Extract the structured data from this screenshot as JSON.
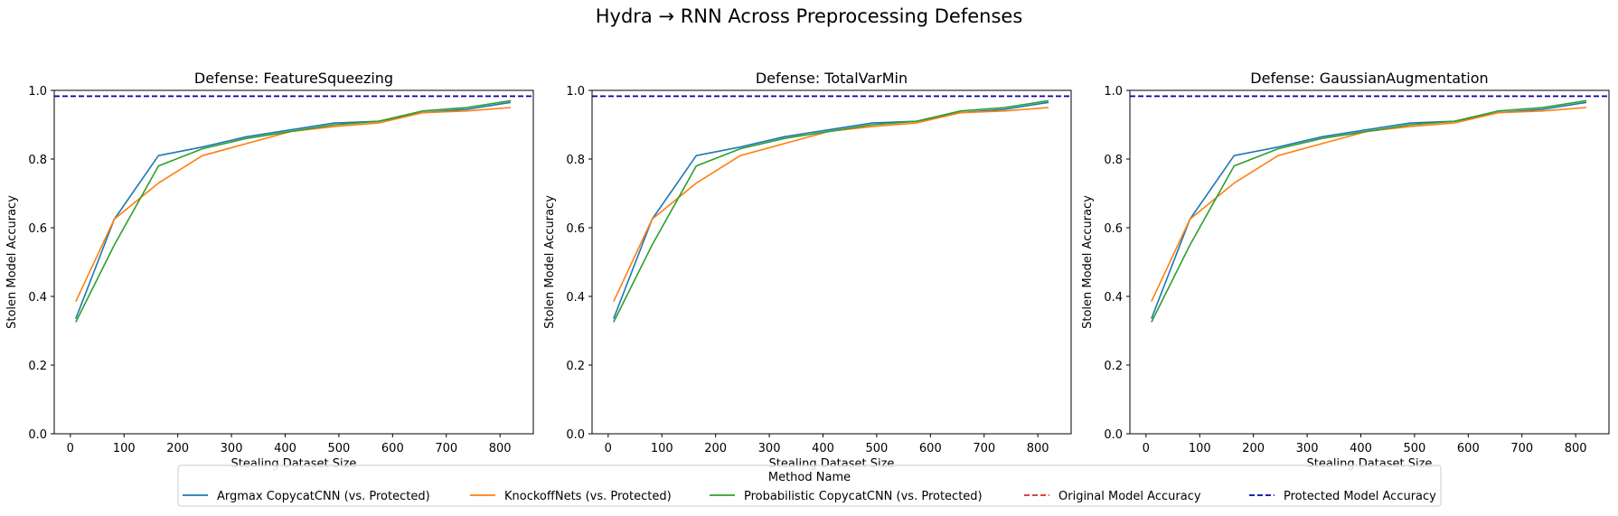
{
  "figure": {
    "suptitle": "Hydra → RNN Across Preprocessing Defenses",
    "legend_title": "Method Name",
    "legend_entries": [
      {
        "label": "Argmax CopycatCNN (vs. Protected)",
        "color": "#1f77b4",
        "dashed": false
      },
      {
        "label": "KnockoffNets (vs. Protected)",
        "color": "#ff7f0e",
        "dashed": false
      },
      {
        "label": "Probabilistic CopycatCNN (vs. Protected)",
        "color": "#2ca02c",
        "dashed": false
      },
      {
        "label": "Original Model Accuracy",
        "color": "#d62728",
        "dashed": true
      },
      {
        "label": "Protected Model Accuracy",
        "color": "#0000b3",
        "dashed": true
      }
    ]
  },
  "chart_data": [
    {
      "type": "line",
      "title": "Defense: FeatureSqueezing",
      "xlabel": "Stealing Dataset Size",
      "ylabel": "Stolen Model Accuracy",
      "xlim": [
        -30,
        862
      ],
      "ylim": [
        0.0,
        1.0
      ],
      "xticks": [
        0,
        100,
        200,
        300,
        400,
        500,
        600,
        700,
        800
      ],
      "yticks": [
        0.0,
        0.2,
        0.4,
        0.6,
        0.8,
        1.0
      ],
      "series": [
        {
          "name": "Argmax CopycatCNN (vs. Protected)",
          "color": "#1f77b4",
          "x": [
            10,
            82,
            164,
            246,
            328,
            410,
            492,
            574,
            656,
            738,
            820
          ],
          "y": [
            0.335,
            0.625,
            0.81,
            0.835,
            0.865,
            0.885,
            0.905,
            0.91,
            0.935,
            0.945,
            0.965
          ]
        },
        {
          "name": "KnockoffNets (vs. Protected)",
          "color": "#ff7f0e",
          "x": [
            10,
            82,
            164,
            246,
            328,
            410,
            492,
            574,
            656,
            738,
            820
          ],
          "y": [
            0.385,
            0.625,
            0.73,
            0.81,
            0.845,
            0.88,
            0.895,
            0.905,
            0.935,
            0.94,
            0.95
          ]
        },
        {
          "name": "Probabilistic CopycatCNN (vs. Protected)",
          "color": "#2ca02c",
          "x": [
            10,
            82,
            164,
            246,
            328,
            410,
            492,
            574,
            656,
            738,
            820
          ],
          "y": [
            0.325,
            0.55,
            0.78,
            0.83,
            0.86,
            0.88,
            0.9,
            0.91,
            0.94,
            0.95,
            0.97
          ]
        }
      ],
      "hlines": [
        {
          "name": "Original Model Accuracy",
          "y": 0.983,
          "color": "#d62728"
        },
        {
          "name": "Protected Model Accuracy",
          "y": 0.983,
          "color": "#0000b3"
        }
      ]
    },
    {
      "type": "line",
      "title": "Defense: TotalVarMin",
      "xlabel": "Stealing Dataset Size",
      "ylabel": "Stolen Model Accuracy",
      "xlim": [
        -30,
        862
      ],
      "ylim": [
        0.0,
        1.0
      ],
      "xticks": [
        0,
        100,
        200,
        300,
        400,
        500,
        600,
        700,
        800
      ],
      "yticks": [
        0.0,
        0.2,
        0.4,
        0.6,
        0.8,
        1.0
      ],
      "series": [
        {
          "name": "Argmax CopycatCNN (vs. Protected)",
          "color": "#1f77b4",
          "x": [
            10,
            82,
            164,
            246,
            328,
            410,
            492,
            574,
            656,
            738,
            820
          ],
          "y": [
            0.335,
            0.625,
            0.81,
            0.835,
            0.865,
            0.885,
            0.905,
            0.91,
            0.935,
            0.945,
            0.965
          ]
        },
        {
          "name": "KnockoffNets (vs. Protected)",
          "color": "#ff7f0e",
          "x": [
            10,
            82,
            164,
            246,
            328,
            410,
            492,
            574,
            656,
            738,
            820
          ],
          "y": [
            0.385,
            0.625,
            0.73,
            0.81,
            0.845,
            0.88,
            0.895,
            0.905,
            0.935,
            0.94,
            0.95
          ]
        },
        {
          "name": "Probabilistic CopycatCNN (vs. Protected)",
          "color": "#2ca02c",
          "x": [
            10,
            82,
            164,
            246,
            328,
            410,
            492,
            574,
            656,
            738,
            820
          ],
          "y": [
            0.325,
            0.55,
            0.78,
            0.83,
            0.86,
            0.88,
            0.9,
            0.91,
            0.94,
            0.95,
            0.97
          ]
        }
      ],
      "hlines": [
        {
          "name": "Original Model Accuracy",
          "y": 0.983,
          "color": "#d62728"
        },
        {
          "name": "Protected Model Accuracy",
          "y": 0.983,
          "color": "#0000b3"
        }
      ]
    },
    {
      "type": "line",
      "title": "Defense: GaussianAugmentation",
      "xlabel": "Stealing Dataset Size",
      "ylabel": "Stolen Model Accuracy",
      "xlim": [
        -30,
        862
      ],
      "ylim": [
        0.0,
        1.0
      ],
      "xticks": [
        0,
        100,
        200,
        300,
        400,
        500,
        600,
        700,
        800
      ],
      "yticks": [
        0.0,
        0.2,
        0.4,
        0.6,
        0.8,
        1.0
      ],
      "series": [
        {
          "name": "Argmax CopycatCNN (vs. Protected)",
          "color": "#1f77b4",
          "x": [
            10,
            82,
            164,
            246,
            328,
            410,
            492,
            574,
            656,
            738,
            820
          ],
          "y": [
            0.335,
            0.625,
            0.81,
            0.835,
            0.865,
            0.885,
            0.905,
            0.91,
            0.935,
            0.945,
            0.965
          ]
        },
        {
          "name": "KnockoffNets (vs. Protected)",
          "color": "#ff7f0e",
          "x": [
            10,
            82,
            164,
            246,
            328,
            410,
            492,
            574,
            656,
            738,
            820
          ],
          "y": [
            0.385,
            0.625,
            0.73,
            0.81,
            0.845,
            0.88,
            0.895,
            0.905,
            0.935,
            0.94,
            0.95
          ]
        },
        {
          "name": "Probabilistic CopycatCNN (vs. Protected)",
          "color": "#2ca02c",
          "x": [
            10,
            82,
            164,
            246,
            328,
            410,
            492,
            574,
            656,
            738,
            820
          ],
          "y": [
            0.325,
            0.55,
            0.78,
            0.83,
            0.86,
            0.88,
            0.9,
            0.91,
            0.94,
            0.95,
            0.97
          ]
        }
      ],
      "hlines": [
        {
          "name": "Original Model Accuracy",
          "y": 0.983,
          "color": "#d62728"
        },
        {
          "name": "Protected Model Accuracy",
          "y": 0.983,
          "color": "#0000b3"
        }
      ]
    }
  ]
}
